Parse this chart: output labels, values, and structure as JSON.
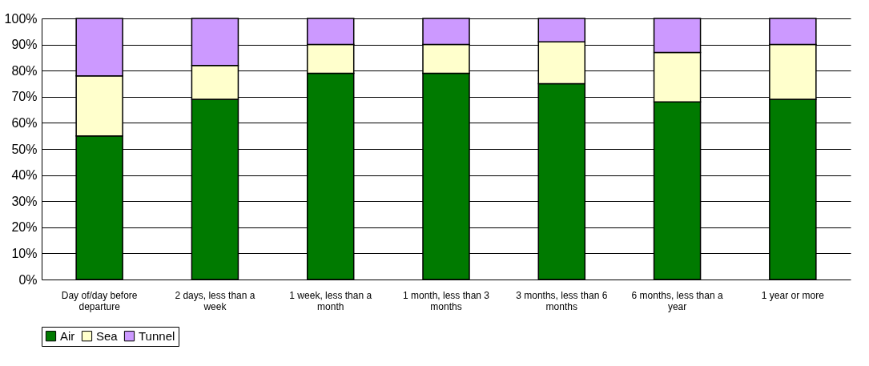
{
  "chart_data": {
    "type": "bar",
    "stacked": true,
    "categories": [
      "Day of/day before departure",
      "2 days, less than a week",
      "1 week, less than a month",
      "1 month, less than 3 months",
      "3 months, less than 6 months",
      "6 months, less than a year",
      "1 year or more"
    ],
    "series": [
      {
        "name": "Air",
        "color": "#007a00",
        "values": [
          55,
          69,
          79,
          79,
          75,
          68,
          69
        ]
      },
      {
        "name": "Sea",
        "color": "#ffffcc",
        "values": [
          23,
          13,
          11,
          11,
          16,
          19,
          21
        ]
      },
      {
        "name": "Tunnel",
        "color": "#cc99ff",
        "values": [
          22,
          18,
          10,
          10,
          9,
          13,
          10
        ]
      }
    ],
    "ylim": [
      0,
      100
    ],
    "yticks": [
      {
        "value": 0,
        "label": "0%"
      },
      {
        "value": 10,
        "label": "10%"
      },
      {
        "value": 20,
        "label": "20%"
      },
      {
        "value": 30,
        "label": "30%"
      },
      {
        "value": 40,
        "label": "40%"
      },
      {
        "value": 50,
        "label": "50%"
      },
      {
        "value": 60,
        "label": "60%"
      },
      {
        "value": 70,
        "label": "70%"
      },
      {
        "value": 80,
        "label": "80%"
      },
      {
        "value": 90,
        "label": "90%"
      },
      {
        "value": 100,
        "label": "100%"
      }
    ],
    "grid": "y",
    "legend": "bottom"
  }
}
